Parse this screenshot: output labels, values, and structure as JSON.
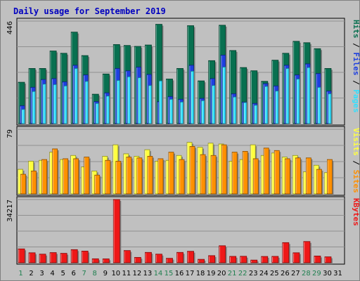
{
  "chart_data": {
    "type": "bar",
    "title": "Daily usage for September 2019",
    "colors": {
      "hits": "#087050",
      "files": "#1e40e0",
      "pages": "#30e0ff",
      "visits": "#ffff40",
      "sites": "#ff9000",
      "kbytes": "#ee1818",
      "weekday_label": "#000000",
      "weekend_label": "#208050",
      "background": "#c0c0c0",
      "plot_bg": "#c0c0c0",
      "grid": "#909090"
    },
    "days": [
      "1",
      "2",
      "3",
      "4",
      "5",
      "6",
      "7",
      "8",
      "9",
      "10",
      "11",
      "12",
      "13",
      "14",
      "15",
      "16",
      "17",
      "18",
      "19",
      "20",
      "21",
      "22",
      "23",
      "24",
      "25",
      "26",
      "27",
      "28",
      "29",
      "30",
      "31"
    ],
    "weekend_days": [
      "1",
      "7",
      "8",
      "14",
      "15",
      "21",
      "22",
      "28",
      "29"
    ],
    "panels": [
      {
        "id": "hits-panel",
        "max_label": "446",
        "legend": [
          {
            "text": "Hits",
            "color": "#087050"
          },
          {
            "text": " / ",
            "color": "#000000"
          },
          {
            "text": "Files",
            "color": "#1e40e0"
          },
          {
            "text": " / ",
            "color": "#000000"
          },
          {
            "text": "Pages",
            "color": "#30e0ff"
          }
        ],
        "ymax": 446,
        "series": [
          {
            "name": "Hits",
            "values": [
              180,
              240,
              240,
              316,
              306,
              398,
              296,
              128,
              216,
              344,
              340,
              336,
              342,
              432,
              194,
              240,
              426,
              186,
              274,
              428,
              318,
              244,
              230,
              184,
              276,
              306,
              358,
              352,
              326,
              240,
              0
            ]
          },
          {
            "name": "Files",
            "values": [
              78,
              158,
              192,
              196,
              182,
              254,
              212,
              96,
              134,
              240,
              230,
              246,
              214,
              96,
              118,
              106,
              254,
              110,
              196,
              298,
              130,
              94,
              88,
              174,
              164,
              254,
              212,
              260,
              218,
              142,
              0
            ]
          },
          {
            "name": "Pages",
            "values": [
              62,
              140,
              172,
              170,
              164,
              240,
              184,
              88,
              120,
              188,
              204,
              200,
              166,
              186,
              106,
              94,
              228,
              100,
              166,
              246,
              116,
              92,
              80,
              162,
              142,
              240,
              194,
              244,
              158,
              130,
              0
            ]
          }
        ]
      },
      {
        "id": "visits-panel",
        "max_label": "79",
        "legend": [
          {
            "text": "Visits",
            "color": "#ffff40"
          },
          {
            "text": " / ",
            "color": "#000000"
          },
          {
            "text": "Sites",
            "color": "#ff9000"
          }
        ],
        "ymax": 79,
        "series": [
          {
            "name": "Visits",
            "values": [
              30,
              40,
              41,
              51,
              42,
              47,
              33,
              28,
              46,
              60,
              49,
              46,
              54,
              40,
              41,
              47,
              63,
              57,
              62,
              61,
              40,
              42,
              60,
              47,
              50,
              45,
              47,
              27,
              35,
              26,
              0
            ]
          },
          {
            "name": "Sites",
            "values": [
              24,
              28,
              42,
              55,
              43,
              43,
              45,
              23,
              41,
              40,
              45,
              44,
              46,
              43,
              51,
              42,
              58,
              48,
              47,
              60,
              51,
              52,
              43,
              56,
              53,
              43,
              44,
              44,
              30,
              42,
              0
            ]
          }
        ]
      },
      {
        "id": "kbytes-panel",
        "max_label": "34217",
        "legend": [
          {
            "text": "KBytes",
            "color": "#ee1818"
          }
        ],
        "ymax": 34217,
        "series": [
          {
            "name": "KBytes",
            "values": [
              7500,
              5400,
              4650,
              5500,
              5100,
              7100,
              6300,
              2150,
              2100,
              34217,
              6600,
              2900,
              5600,
              4650,
              2400,
              5600,
              6200,
              1850,
              3850,
              9200,
              3450,
              3500,
              1450,
              3400,
              3450,
              10900,
              5400,
              11500,
              3650,
              3200,
              0
            ]
          }
        ]
      }
    ]
  }
}
